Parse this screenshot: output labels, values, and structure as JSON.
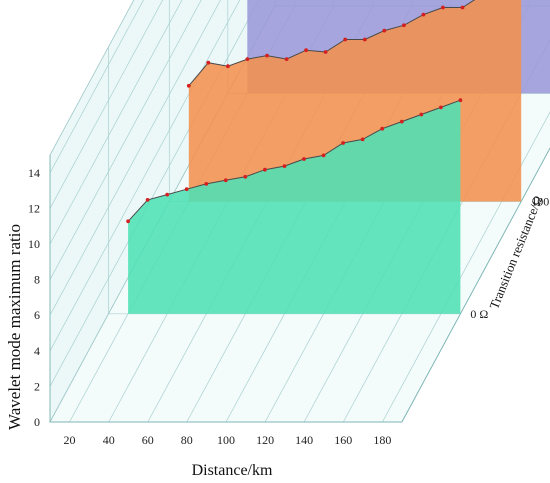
{
  "chart_data": {
    "type": "area",
    "title": "",
    "xlabel": "Distance/km",
    "ylabel": "Wavelet mode maximum ratio",
    "zlabel": "Transition resistance/Ω",
    "x_ticks": [
      "20",
      "40",
      "60",
      "80",
      "100",
      "120",
      "140",
      "160",
      "180"
    ],
    "y_ticks": [
      "0",
      "2",
      "4",
      "6",
      "8",
      "10",
      "12",
      "14"
    ],
    "z_ticks": [
      "0 Ω",
      "100 Ω",
      "200 Ω"
    ],
    "xlim": [
      10,
      190
    ],
    "ylim": [
      0,
      15
    ],
    "x": [
      20,
      30,
      40,
      50,
      60,
      70,
      80,
      90,
      100,
      110,
      120,
      130,
      140,
      150,
      160,
      170,
      180,
      190
    ],
    "series": [
      {
        "name": "0 Ω",
        "color": "#4fe0b4",
        "values": [
          5.2,
          6.4,
          6.7,
          7.0,
          7.3,
          7.5,
          7.7,
          8.1,
          8.3,
          8.7,
          8.9,
          9.6,
          9.8,
          10.4,
          10.8,
          11.2,
          11.6,
          12.0
        ]
      },
      {
        "name": "100 Ω",
        "color": "#f2914e",
        "values": [
          6.5,
          7.8,
          7.6,
          8.0,
          8.2,
          8.0,
          8.5,
          8.4,
          9.1,
          9.1,
          9.6,
          9.9,
          10.5,
          10.9,
          10.9,
          11.6,
          12.2,
          12.2
        ]
      },
      {
        "name": "200 Ω",
        "color": "#9b98d8",
        "values": [
          6.4,
          7.0,
          7.0,
          7.5,
          7.5,
          7.9,
          7.8,
          8.1,
          8.2,
          8.6,
          8.8,
          9.1,
          9.5,
          9.7,
          10.1,
          10.5,
          10.7,
          11.3
        ]
      }
    ],
    "grid": true,
    "marker_color": "#d42020"
  }
}
